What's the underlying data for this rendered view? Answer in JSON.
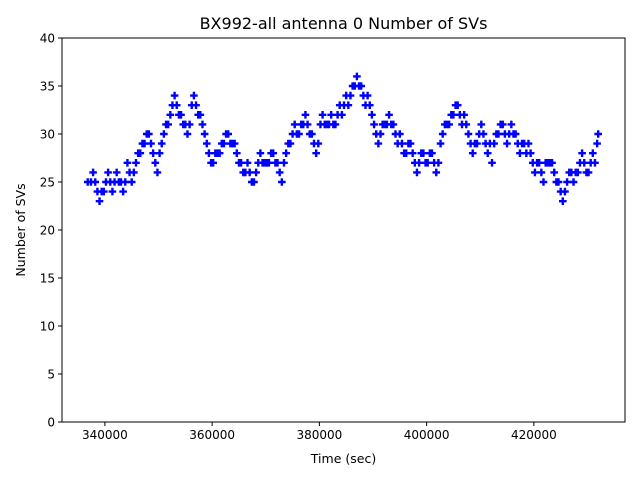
{
  "chart_data": {
    "type": "scatter",
    "title": "BX992-all antenna 0 Number of SVs",
    "xlabel": "Time (sec)",
    "ylabel": "Number of SVs",
    "xlim": [
      332000,
      437000
    ],
    "ylim": [
      0,
      40
    ],
    "xticks": [
      340000,
      360000,
      380000,
      400000,
      420000
    ],
    "xtick_labels": [
      "340000",
      "360000",
      "380000",
      "400000",
      "420000"
    ],
    "yticks": [
      0,
      5,
      10,
      15,
      20,
      25,
      30,
      35,
      40
    ],
    "ytick_labels": [
      "0",
      "5",
      "10",
      "15",
      "20",
      "25",
      "30",
      "35",
      "40"
    ],
    "grid": false,
    "marker": "plus",
    "color": "#0000ff",
    "series": [
      {
        "values": [
          [
            336800,
            25
          ],
          [
            337400,
            25
          ],
          [
            337800,
            26
          ],
          [
            338200,
            25
          ],
          [
            338600,
            24
          ],
          [
            339000,
            23
          ],
          [
            339400,
            24
          ],
          [
            339800,
            24
          ],
          [
            340200,
            25
          ],
          [
            340600,
            26
          ],
          [
            341000,
            25
          ],
          [
            341400,
            24
          ],
          [
            341800,
            25
          ],
          [
            342200,
            26
          ],
          [
            342600,
            25
          ],
          [
            343000,
            25
          ],
          [
            343400,
            24
          ],
          [
            343800,
            25
          ],
          [
            344200,
            27
          ],
          [
            344600,
            26
          ],
          [
            345000,
            25
          ],
          [
            345400,
            26
          ],
          [
            345800,
            27
          ],
          [
            346200,
            28
          ],
          [
            346600,
            28
          ],
          [
            347000,
            29
          ],
          [
            347400,
            29
          ],
          [
            347800,
            30
          ],
          [
            348200,
            30
          ],
          [
            348600,
            29
          ],
          [
            349000,
            28
          ],
          [
            349400,
            27
          ],
          [
            349800,
            26
          ],
          [
            350200,
            28
          ],
          [
            350600,
            29
          ],
          [
            351000,
            30
          ],
          [
            351400,
            31
          ],
          [
            351800,
            31
          ],
          [
            352200,
            32
          ],
          [
            352600,
            33
          ],
          [
            353000,
            34
          ],
          [
            353400,
            33
          ],
          [
            353800,
            32
          ],
          [
            354200,
            32
          ],
          [
            354600,
            31
          ],
          [
            355000,
            31
          ],
          [
            355400,
            30
          ],
          [
            355800,
            31
          ],
          [
            356200,
            33
          ],
          [
            356600,
            34
          ],
          [
            357000,
            33
          ],
          [
            357400,
            32
          ],
          [
            357800,
            32
          ],
          [
            358200,
            31
          ],
          [
            358600,
            30
          ],
          [
            359000,
            29
          ],
          [
            359400,
            28
          ],
          [
            359800,
            27
          ],
          [
            360200,
            27
          ],
          [
            360600,
            28
          ],
          [
            361000,
            28
          ],
          [
            361400,
            28
          ],
          [
            361800,
            29
          ],
          [
            362200,
            29
          ],
          [
            362600,
            30
          ],
          [
            363000,
            30
          ],
          [
            363400,
            29
          ],
          [
            363800,
            29
          ],
          [
            364200,
            29
          ],
          [
            364600,
            28
          ],
          [
            365000,
            27
          ],
          [
            365400,
            27
          ],
          [
            365800,
            26
          ],
          [
            366200,
            26
          ],
          [
            366600,
            27
          ],
          [
            367000,
            26
          ],
          [
            367400,
            25
          ],
          [
            367800,
            25
          ],
          [
            368200,
            26
          ],
          [
            368600,
            27
          ],
          [
            369000,
            28
          ],
          [
            369400,
            27
          ],
          [
            369800,
            27
          ],
          [
            370200,
            27
          ],
          [
            370600,
            27
          ],
          [
            371000,
            28
          ],
          [
            371400,
            28
          ],
          [
            371800,
            27
          ],
          [
            372200,
            27
          ],
          [
            372600,
            26
          ],
          [
            373000,
            25
          ],
          [
            373400,
            27
          ],
          [
            373800,
            28
          ],
          [
            374200,
            29
          ],
          [
            374600,
            29
          ],
          [
            375000,
            30
          ],
          [
            375400,
            31
          ],
          [
            375800,
            30
          ],
          [
            376200,
            30
          ],
          [
            376600,
            31
          ],
          [
            377000,
            31
          ],
          [
            377400,
            32
          ],
          [
            377800,
            31
          ],
          [
            378200,
            30
          ],
          [
            378600,
            30
          ],
          [
            379000,
            29
          ],
          [
            379400,
            28
          ],
          [
            379800,
            29
          ],
          [
            380200,
            31
          ],
          [
            380600,
            32
          ],
          [
            381000,
            31
          ],
          [
            381400,
            31
          ],
          [
            381800,
            31
          ],
          [
            382200,
            32
          ],
          [
            382600,
            31
          ],
          [
            383000,
            31
          ],
          [
            383400,
            32
          ],
          [
            383800,
            33
          ],
          [
            384200,
            32
          ],
          [
            384600,
            33
          ],
          [
            385000,
            34
          ],
          [
            385400,
            33
          ],
          [
            385800,
            34
          ],
          [
            386200,
            35
          ],
          [
            386600,
            35
          ],
          [
            387000,
            36
          ],
          [
            387400,
            35
          ],
          [
            387800,
            35
          ],
          [
            388200,
            34
          ],
          [
            388600,
            33
          ],
          [
            389000,
            34
          ],
          [
            389400,
            33
          ],
          [
            389800,
            32
          ],
          [
            390200,
            31
          ],
          [
            390600,
            30
          ],
          [
            391000,
            29
          ],
          [
            391400,
            30
          ],
          [
            391800,
            31
          ],
          [
            392200,
            31
          ],
          [
            392600,
            31
          ],
          [
            393000,
            32
          ],
          [
            393400,
            31
          ],
          [
            393800,
            31
          ],
          [
            394200,
            30
          ],
          [
            394600,
            29
          ],
          [
            395000,
            30
          ],
          [
            395400,
            29
          ],
          [
            395800,
            28
          ],
          [
            396200,
            28
          ],
          [
            396600,
            29
          ],
          [
            397000,
            29
          ],
          [
            397400,
            28
          ],
          [
            397800,
            27
          ],
          [
            398200,
            26
          ],
          [
            398600,
            27
          ],
          [
            399000,
            28
          ],
          [
            399400,
            28
          ],
          [
            399800,
            27
          ],
          [
            400200,
            27
          ],
          [
            400600,
            28
          ],
          [
            401000,
            28
          ],
          [
            401400,
            27
          ],
          [
            401800,
            26
          ],
          [
            402200,
            27
          ],
          [
            402600,
            29
          ],
          [
            403000,
            30
          ],
          [
            403400,
            31
          ],
          [
            403800,
            31
          ],
          [
            404200,
            31
          ],
          [
            404600,
            32
          ],
          [
            405000,
            32
          ],
          [
            405400,
            33
          ],
          [
            405800,
            33
          ],
          [
            406200,
            32
          ],
          [
            406600,
            31
          ],
          [
            407000,
            32
          ],
          [
            407400,
            31
          ],
          [
            407800,
            30
          ],
          [
            408200,
            29
          ],
          [
            408600,
            28
          ],
          [
            409000,
            29
          ],
          [
            409400,
            29
          ],
          [
            409800,
            30
          ],
          [
            410200,
            31
          ],
          [
            410600,
            30
          ],
          [
            411000,
            29
          ],
          [
            411400,
            28
          ],
          [
            411800,
            29
          ],
          [
            412200,
            27
          ],
          [
            412600,
            29
          ],
          [
            413000,
            30
          ],
          [
            413400,
            30
          ],
          [
            413800,
            31
          ],
          [
            414200,
            31
          ],
          [
            414600,
            30
          ],
          [
            415000,
            29
          ],
          [
            415400,
            30
          ],
          [
            415800,
            31
          ],
          [
            416200,
            30
          ],
          [
            416600,
            30
          ],
          [
            417000,
            29
          ],
          [
            417400,
            28
          ],
          [
            417800,
            29
          ],
          [
            418200,
            29
          ],
          [
            418600,
            28
          ],
          [
            419000,
            29
          ],
          [
            419400,
            28
          ],
          [
            419800,
            27
          ],
          [
            420200,
            26
          ],
          [
            420600,
            27
          ],
          [
            421000,
            27
          ],
          [
            421400,
            26
          ],
          [
            421800,
            25
          ],
          [
            422200,
            27
          ],
          [
            422600,
            27
          ],
          [
            423000,
            27
          ],
          [
            423400,
            27
          ],
          [
            423800,
            26
          ],
          [
            424200,
            25
          ],
          [
            424600,
            25
          ],
          [
            425000,
            24
          ],
          [
            425400,
            23
          ],
          [
            425800,
            24
          ],
          [
            426200,
            25
          ],
          [
            426600,
            26
          ],
          [
            427000,
            26
          ],
          [
            427400,
            25
          ],
          [
            427800,
            26
          ],
          [
            428200,
            26
          ],
          [
            428600,
            27
          ],
          [
            429000,
            28
          ],
          [
            429400,
            27
          ],
          [
            429800,
            26
          ],
          [
            430200,
            26
          ],
          [
            430600,
            27
          ],
          [
            431000,
            28
          ],
          [
            431400,
            27
          ],
          [
            431800,
            29
          ],
          [
            432000,
            30
          ]
        ]
      }
    ]
  }
}
